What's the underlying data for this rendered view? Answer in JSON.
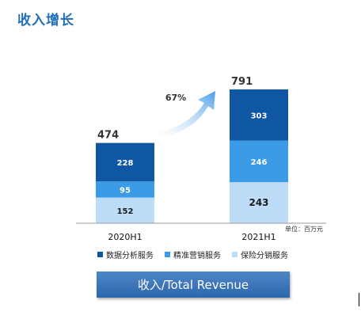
{
  "title": "收入增长",
  "unit_note": "单位：百万元",
  "banner": "收入/Total Revenue",
  "colors": {
    "data_analysis": "#0f56a3",
    "precision_marketing": "#3b9be6",
    "insurance": "#bcdcf7",
    "title": "#1f6fb8",
    "arrow": "#4a9ee8"
  },
  "chart_data": {
    "type": "bar",
    "stacked": true,
    "categories": [
      "2020H1",
      "2021H1"
    ],
    "series": [
      {
        "name": "保险分销服务",
        "values": [
          152,
          243
        ]
      },
      {
        "name": "精准营销服务",
        "values": [
          95,
          246
        ]
      },
      {
        "name": "数据分析服务",
        "values": [
          228,
          303
        ]
      }
    ],
    "totals": [
      "474",
      "791"
    ],
    "growth_label": "67%",
    "legend": [
      "数据分析服务",
      "精准营销服务",
      "保险分销服务"
    ],
    "legend_position": "bottom",
    "grid": false
  }
}
